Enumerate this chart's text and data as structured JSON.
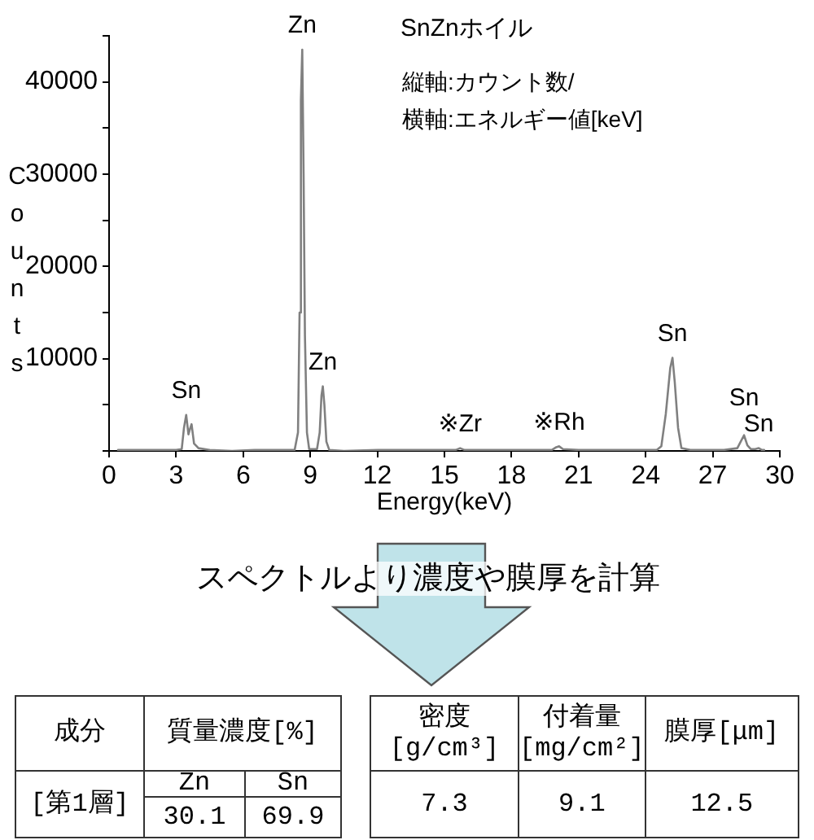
{
  "chart_data": {
    "type": "line",
    "title": "SnZnホイル",
    "subtitle": "縦軸:カウント数/\n横軸:エネルギー値[keV]",
    "xlabel": "Energy(keV)",
    "ylabel": "Counts",
    "x": [
      0.4,
      1.0,
      2.0,
      3.0,
      3.25,
      3.35,
      3.45,
      3.55,
      3.62,
      3.69,
      3.8,
      4.0,
      4.5,
      5.5,
      6.5,
      7.5,
      8.3,
      8.45,
      8.52,
      8.58,
      8.64,
      8.7,
      8.76,
      8.85,
      8.95,
      9.3,
      9.42,
      9.5,
      9.56,
      9.63,
      9.72,
      9.85,
      10.5,
      12,
      14,
      15.5,
      15.7,
      15.9,
      17,
      19.8,
      20.0,
      20.13,
      20.3,
      21,
      23,
      24.5,
      24.7,
      24.9,
      25.1,
      25.2,
      25.3,
      25.45,
      25.6,
      26,
      27.5,
      28.1,
      28.25,
      28.4,
      28.55,
      28.7,
      28.9,
      29.06,
      29.2,
      29.3
    ],
    "values": [
      100,
      100,
      100,
      100,
      200,
      2500,
      3900,
      1800,
      2400,
      2900,
      800,
      300,
      100,
      0,
      100,
      100,
      100,
      2000,
      15000,
      38000,
      43500,
      30000,
      12500,
      2000,
      200,
      200,
      2000,
      6000,
      7000,
      5000,
      1000,
      100,
      0,
      100,
      100,
      100,
      300,
      100,
      100,
      100,
      400,
      500,
      200,
      100,
      100,
      100,
      500,
      4000,
      9000,
      10100,
      7500,
      2500,
      300,
      100,
      100,
      300,
      1000,
      1700,
      600,
      200,
      200,
      300,
      100,
      100
    ],
    "color": "#808080",
    "xlim": [
      0,
      30
    ],
    "xticks": [
      0,
      3,
      6,
      9,
      12,
      15,
      18,
      21,
      24,
      27,
      30
    ],
    "ylim": [
      0,
      45000
    ],
    "yticks": [
      {
        "value": 0,
        "label": null
      },
      {
        "value": 5000,
        "label": null
      },
      10000,
      {
        "value": 15000,
        "label": null
      },
      20000,
      {
        "value": 25000,
        "label": null
      },
      30000,
      {
        "value": 35000,
        "label": null
      },
      40000,
      {
        "value": 45000,
        "label": null
      }
    ],
    "grid": false,
    "legend": false,
    "marker": "none",
    "line_style": "solid",
    "annotations": [
      {
        "text": "Sn",
        "x": 3.45,
        "y": 3900
      },
      {
        "text": "Zn",
        "x": 8.64,
        "y": 43500
      },
      {
        "text": "Zn",
        "x": 9.56,
        "y": 7000
      },
      {
        "text": "※Zr",
        "x": 15.7,
        "y": 300
      },
      {
        "text": "※Rh",
        "x": 20.13,
        "y": 500
      },
      {
        "text": "Sn",
        "x": 25.2,
        "y": 10100
      },
      {
        "text": "Sn",
        "x": 28.4,
        "y": 1700
      },
      {
        "text": "Sn",
        "x": 29.06,
        "y": 300
      },
      "スペクトルより濃度や膜厚を計算",
      "成分",
      "質量濃度[%]",
      "[第1層]",
      "Zn",
      "Sn",
      "30.1",
      "69.9",
      "密度\n[g/cm³]",
      "付着量\n[mg/cm²]",
      "膜厚[μm]",
      "7.3",
      "9.1",
      "12.5"
    ]
  }
}
